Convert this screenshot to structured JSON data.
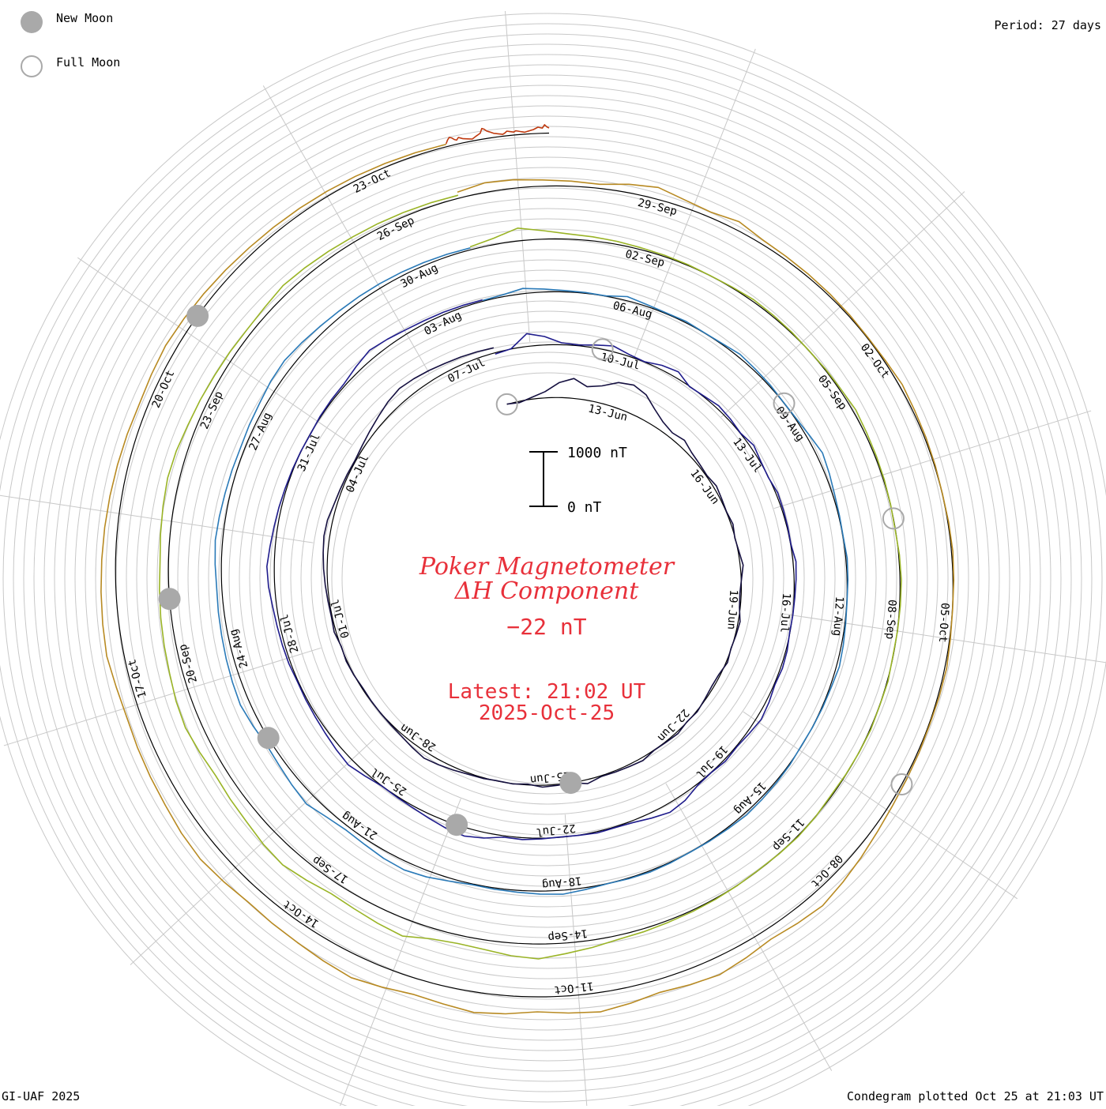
{
  "title": {
    "line1": "Poker Magnetometer",
    "line2": "ΔH Component",
    "value": "−22 nT",
    "latest": "Latest: 21:02 UT",
    "date": "2025-Oct-25",
    "color": "#e8303a"
  },
  "scale_bar": {
    "top_label": "1000 nT",
    "bottom_label": "0 nT"
  },
  "period": "Period: 27 days",
  "legend": {
    "new_moon": "New Moon",
    "full_moon": "Full Moon",
    "moon_color": "#a9a9a9"
  },
  "footer": {
    "left": "GI-UAF 2025",
    "right": "Condegram plotted Oct 25 at 21:03 UT"
  },
  "chart_data": {
    "type": "line",
    "layout": "polar condegram (spiral time axis, 27-day rotations)",
    "y_unit": "nT",
    "scale_reference": [
      0,
      1000
    ],
    "rotations": [
      {
        "date_labels": [
          "13-Jun",
          "16-Jun",
          "19-Jun",
          "22-Jun",
          "25-Jun"
        ],
        "color": "#151040",
        "values": [
          150,
          120,
          180,
          260,
          420,
          510,
          390,
          460,
          600,
          650,
          580,
          420,
          300,
          240,
          280,
          210,
          180,
          160,
          200,
          170,
          150,
          180,
          140,
          160,
          200,
          150,
          120,
          130,
          180,
          160,
          140,
          170,
          120,
          110,
          130,
          160,
          140,
          180,
          160,
          150,
          200,
          180,
          170,
          160,
          220,
          150,
          160,
          180,
          130,
          150,
          140,
          160,
          170,
          200,
          230,
          260,
          220,
          180,
          160,
          150,
          140,
          130,
          150,
          160,
          140,
          180,
          160,
          170,
          190,
          210,
          230,
          250,
          240,
          200,
          180,
          170,
          160,
          190,
          230,
          280,
          340,
          380,
          360,
          330,
          300,
          280,
          260,
          240
        ]
      },
      {
        "date_labels": [
          "28-Jun",
          "01-Jul",
          "04-Jul",
          "07-Jul",
          "10-Jul",
          "13-Jul",
          "16-Jul",
          "19-Jul",
          "22-Jul"
        ],
        "color": "#1f1c8c",
        "values": [
          120,
          150,
          380,
          300,
          180,
          160,
          200,
          250,
          180,
          150,
          220,
          260,
          140,
          160,
          200,
          180,
          150,
          210,
          160,
          140,
          180,
          170,
          160,
          150,
          200,
          180,
          160,
          150,
          140,
          170,
          180,
          160,
          200,
          230,
          190,
          160,
          180,
          150,
          170,
          260,
          300,
          240,
          180,
          160,
          170,
          150,
          140,
          160,
          180,
          170,
          250,
          300,
          270,
          220,
          180,
          160,
          150,
          200,
          260,
          230,
          200,
          180,
          170,
          160,
          180,
          190,
          200,
          220,
          260,
          280,
          240,
          210,
          190,
          170,
          160,
          150,
          140,
          160,
          170,
          180,
          240,
          300,
          260,
          220,
          200,
          190,
          180,
          170
        ]
      },
      {
        "date_labels": [
          "25-Jul",
          "28-Jul",
          "31-Jul",
          "03-Aug",
          "06-Aug",
          "09-Aug",
          "12-Aug",
          "15-Aug",
          "18-Aug"
        ],
        "color": "#2a7ab8",
        "values": [
          160,
          180,
          240,
          200,
          170,
          160,
          150,
          220,
          180,
          160,
          170,
          150,
          160,
          200,
          180,
          170,
          150,
          160,
          200,
          260,
          220,
          180,
          160,
          150,
          170,
          160,
          150,
          160,
          180,
          200,
          170,
          160,
          150,
          140,
          160,
          170,
          180,
          190,
          170,
          160,
          150,
          160,
          170,
          160,
          150,
          180,
          220,
          200,
          180,
          170,
          160,
          200,
          260,
          300,
          280,
          240,
          220,
          260,
          340,
          300,
          260,
          240,
          280,
          320,
          300,
          280,
          260,
          250,
          240,
          260,
          280,
          260,
          240,
          230,
          220,
          240,
          260,
          300,
          320,
          290,
          260,
          240,
          230,
          220,
          210,
          200,
          190,
          180
        ]
      },
      {
        "date_labels": [
          "21-Aug",
          "24-Aug",
          "27-Aug",
          "30-Aug",
          "02-Sep",
          "05-Sep",
          "08-Sep",
          "11-Sep",
          "14-Sep"
        ],
        "color": "#9ab426",
        "values": [
          200,
          260,
          380,
          300,
          240,
          220,
          200,
          180,
          170,
          160,
          150,
          160,
          180,
          170,
          160,
          150,
          160,
          170,
          200,
          180,
          170,
          160,
          150,
          140,
          160,
          170,
          160,
          150,
          140,
          160,
          150,
          160,
          150,
          140,
          130,
          150,
          160,
          150,
          140,
          150,
          160,
          170,
          180,
          200,
          220,
          280,
          340,
          420,
          380,
          320,
          300,
          340,
          460,
          420,
          380,
          360,
          420,
          480,
          450,
          400,
          380,
          360,
          400,
          440,
          420,
          380,
          360,
          340,
          320,
          300,
          320,
          340,
          360,
          340,
          300,
          280,
          260,
          250,
          240,
          260,
          300,
          280,
          260,
          240,
          230,
          220,
          210,
          200
        ]
      },
      {
        "date_labels": [
          "17-Sep",
          "20-Sep",
          "23-Sep",
          "26-Sep",
          "29-Sep",
          "02-Oct",
          "05-Oct",
          "08-Oct",
          "11-Oct"
        ],
        "color": "#b88a22",
        "values": [
          260,
          320,
          300,
          260,
          240,
          220,
          300,
          360,
          280,
          240,
          300,
          220,
          200,
          190,
          180,
          170,
          160,
          170,
          200,
          180,
          170,
          160,
          150,
          160,
          170,
          160,
          150,
          160,
          180,
          170,
          160,
          170,
          180,
          200,
          240,
          300,
          360,
          420,
          380,
          340,
          400,
          460,
          420,
          380,
          440,
          500,
          460,
          420,
          480,
          520,
          470,
          440,
          500,
          560,
          520,
          480,
          460,
          440,
          480,
          520,
          500,
          460,
          440,
          420,
          400,
          420,
          460,
          440,
          420,
          400,
          380,
          360,
          340,
          320,
          300,
          320,
          340,
          320,
          300,
          280,
          260,
          250,
          240,
          230,
          220,
          210,
          200,
          190
        ]
      },
      {
        "date_labels": [
          "14-Oct",
          "17-Oct",
          "20-Oct",
          "23-Oct"
        ],
        "color": "#c03a10",
        "values": [
          200,
          260,
          300,
          280,
          240,
          220,
          260,
          240,
          220,
          210,
          200,
          190,
          180,
          200,
          220,
          240,
          260,
          340,
          320,
          280,
          260,
          240,
          220,
          210,
          200,
          190,
          180,
          200,
          230,
          220,
          210,
          200,
          220,
          210,
          200,
          190,
          180,
          190,
          200,
          210,
          220,
          240,
          260,
          250,
          240,
          300,
          260,
          240
        ]
      }
    ],
    "new_moons": [
      "25-Jun",
      "24-Jul",
      "23-Aug",
      "21-Sep",
      "21-Oct"
    ],
    "full_moons": [
      "11-Jun",
      "10-Jul",
      "09-Aug",
      "07-Sep",
      "07-Oct"
    ]
  }
}
